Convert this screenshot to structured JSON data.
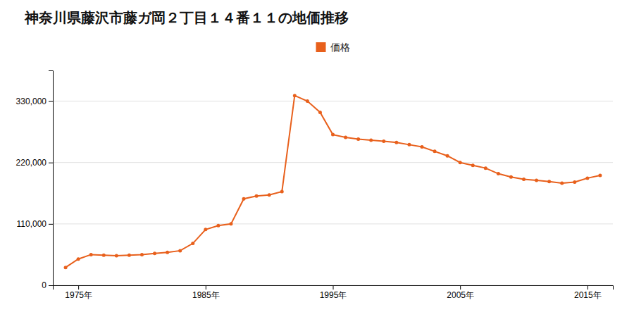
{
  "chart_data": {
    "type": "line",
    "title": "神奈川県藤沢市藤ガ岡２丁目１４番１１の地価推移",
    "x": [
      1974,
      1975,
      1976,
      1977,
      1978,
      1979,
      1980,
      1981,
      1982,
      1983,
      1984,
      1985,
      1986,
      1987,
      1988,
      1989,
      1990,
      1991,
      1992,
      1993,
      1994,
      1995,
      1996,
      1997,
      1998,
      1999,
      2000,
      2001,
      2002,
      2003,
      2004,
      2005,
      2006,
      2007,
      2008,
      2009,
      2010,
      2011,
      2012,
      2013,
      2014,
      2015,
      2016
    ],
    "series": [
      {
        "name": "価格",
        "color": "#e8601c",
        "marker": "circle",
        "values": [
          32000,
          47000,
          55000,
          54000,
          53000,
          54000,
          55000,
          57000,
          59000,
          62000,
          75000,
          100000,
          107000,
          110000,
          155000,
          160000,
          162000,
          168000,
          340000,
          330000,
          310000,
          270000,
          265000,
          262000,
          260000,
          258000,
          256000,
          252000,
          248000,
          240000,
          232000,
          220000,
          215000,
          210000,
          200000,
          194000,
          190000,
          188000,
          186000,
          183000,
          185000,
          192000,
          197000
        ]
      }
    ],
    "xlim": [
      1973,
      2017
    ],
    "xticks": [
      {
        "value": 1975,
        "label": "1975年"
      },
      {
        "value": 1985,
        "label": "1985年"
      },
      {
        "value": 1995,
        "label": "1995年"
      },
      {
        "value": 2005,
        "label": "2005年"
      },
      {
        "value": 2015,
        "label": "2015年"
      }
    ],
    "ylim": [
      0,
      385000
    ],
    "yticks": [
      0,
      {
        "value": 110000,
        "label": "110,000"
      },
      {
        "value": 220000,
        "label": "220,000"
      },
      {
        "value": 330000,
        "label": "330,000"
      }
    ],
    "grid": true,
    "legend": "top"
  }
}
